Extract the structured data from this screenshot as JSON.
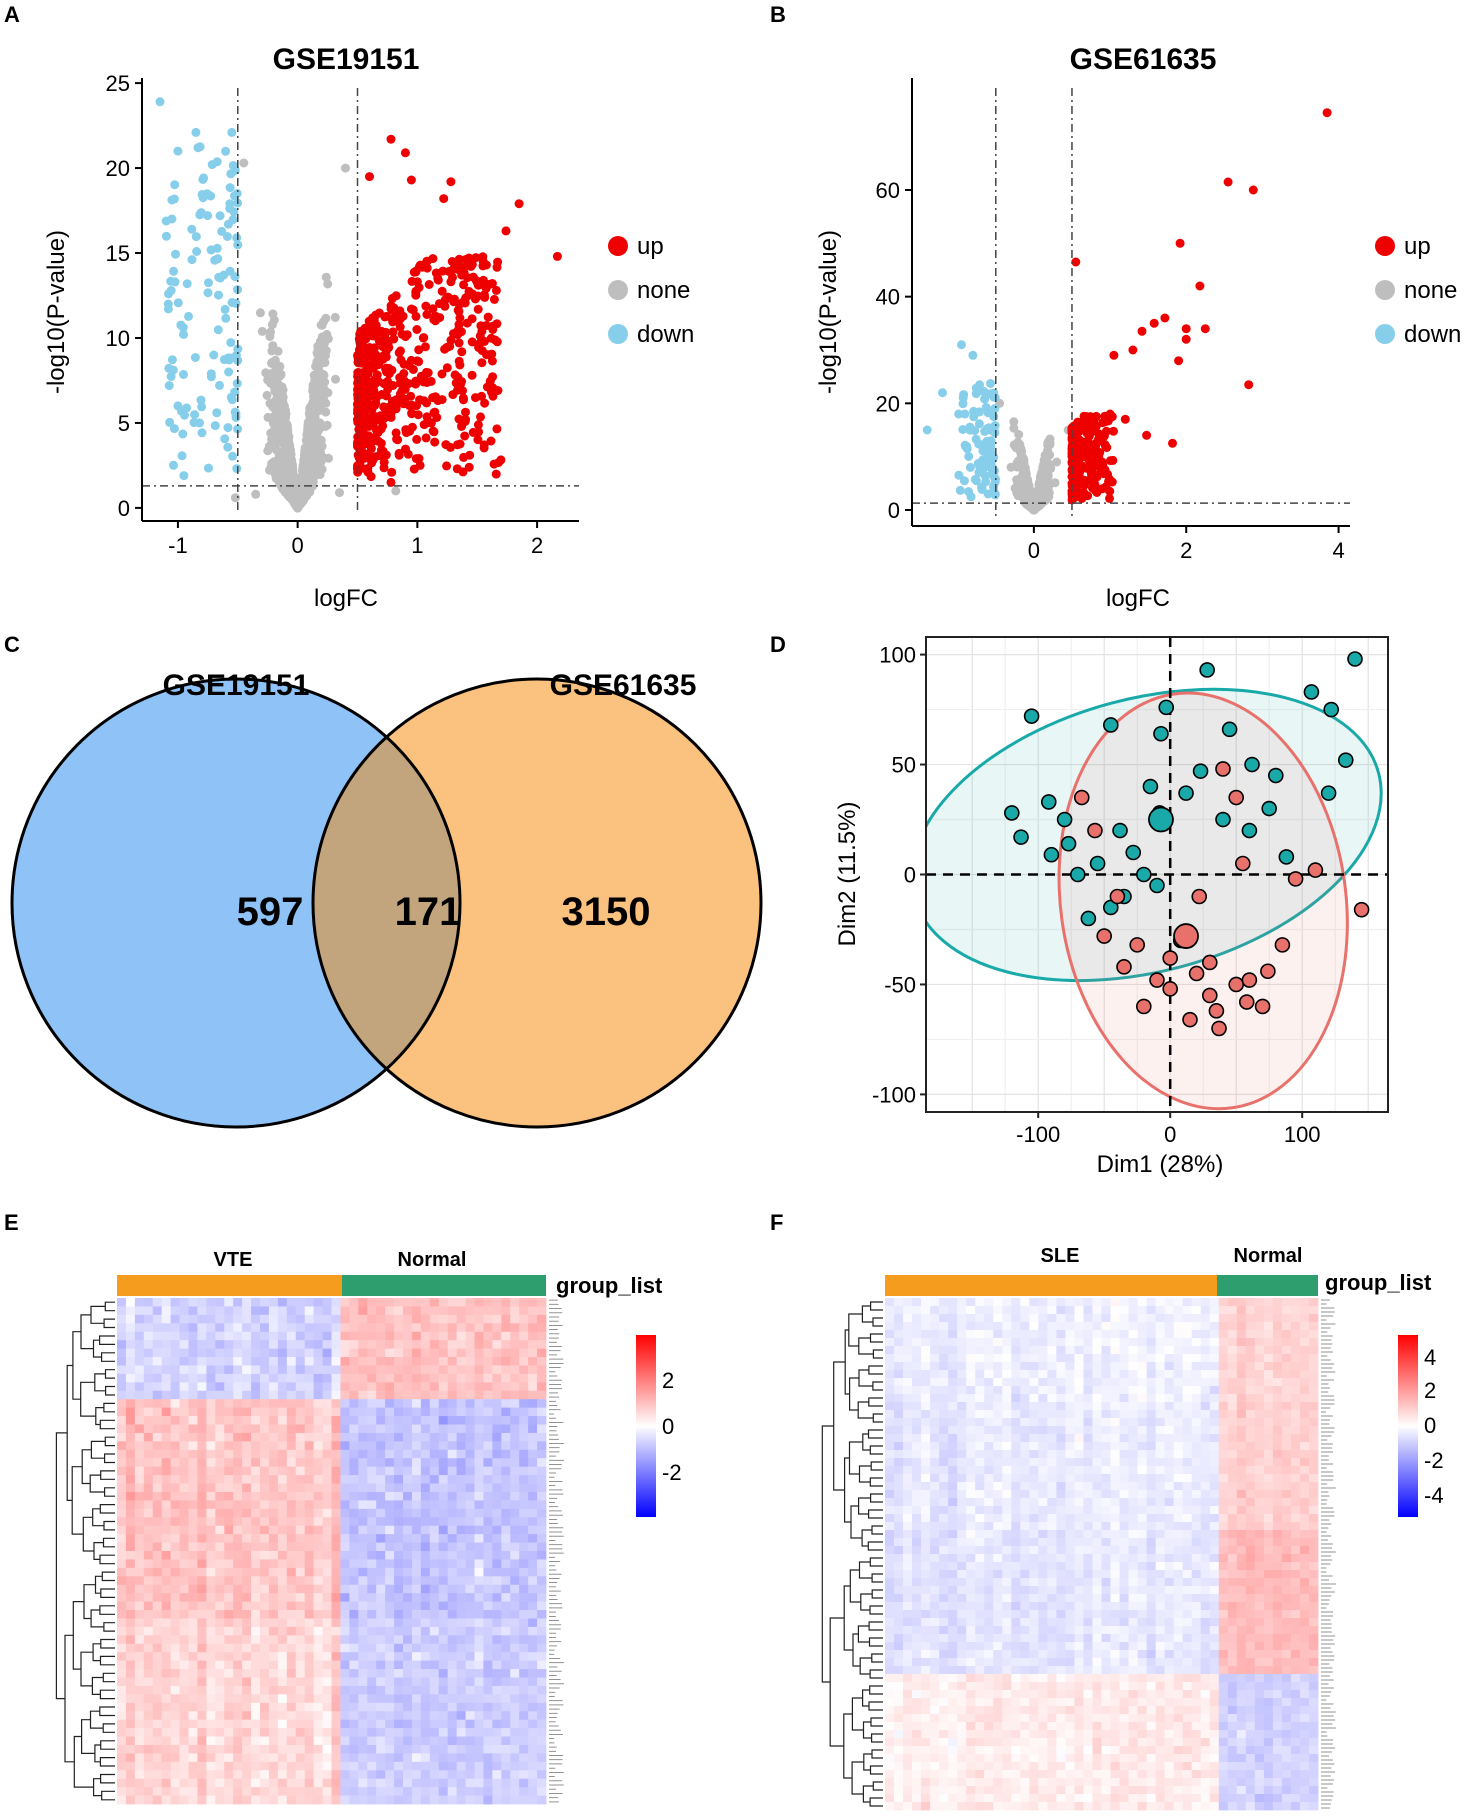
{
  "panels": {
    "A": "A",
    "B": "B",
    "C": "C",
    "D": "D",
    "E": "E",
    "F": "F"
  },
  "colors": {
    "up": "#ee0000",
    "none": "#bebebe",
    "down": "#87ceeb",
    "venn_left": "#8fc3f7",
    "venn_right": "#fac17f",
    "venn_overlap": "#c3a57d",
    "pca_group1": "#1aa9a9",
    "pca_group2": "#e8716b",
    "hm_high": "#ff0000",
    "hm_low": "#0000ff",
    "hm_bar_disease": "#f59c1e",
    "hm_bar_normal": "#2e9e6f"
  },
  "chart_data": [
    {
      "id": "A",
      "type": "scatter",
      "title": "GSE19151",
      "xlabel": "logFC",
      "ylabel": "-log10(P-value)",
      "xlim": [
        -1.3,
        2.35
      ],
      "ylim": [
        -0.3,
        25.3
      ],
      "xticks": [
        -1,
        0,
        1,
        2
      ],
      "yticks": [
        0,
        5,
        10,
        15,
        20,
        25
      ],
      "vlines": [
        -0.5,
        0.5
      ],
      "hline": 1.3,
      "legend": [
        "up",
        "none",
        "down"
      ],
      "legend_position": "right",
      "series": [
        {
          "name": "up",
          "points": [
            [
              2.17,
              14.8
            ],
            [
              1.85,
              17.9
            ],
            [
              1.74,
              16.3
            ],
            [
              1.66,
              12.8
            ],
            [
              1.63,
              10.5
            ],
            [
              1.55,
              14.5
            ],
            [
              1.28,
              19.2
            ],
            [
              1.22,
              18.2
            ],
            [
              0.9,
              20.9
            ],
            [
              0.78,
              21.7
            ],
            [
              0.95,
              19.3
            ],
            [
              0.6,
              19.5
            ],
            [
              1.35,
              7.4
            ],
            [
              1.08,
              5.0
            ],
            [
              0.78,
              1.5
            ]
          ]
        },
        {
          "name": "down",
          "points": [
            [
              -1.15,
              23.9
            ],
            [
              -0.85,
              22.1
            ],
            [
              -1.0,
              21.0
            ],
            [
              -1.08,
              12.0
            ],
            [
              -1.0,
              6.0
            ],
            [
              -0.95,
              1.9
            ],
            [
              -0.82,
              5.0
            ],
            [
              -0.7,
              9.0
            ],
            [
              -1.05,
              17.0
            ],
            [
              -0.55,
              22.1
            ]
          ]
        },
        {
          "name": "none",
          "points": [
            [
              0.0,
              0.2
            ],
            [
              -0.35,
              0.8
            ],
            [
              0.35,
              0.9
            ],
            [
              0.82,
              1.0
            ],
            [
              -0.52,
              0.6
            ],
            [
              0.4,
              20.0
            ],
            [
              -0.45,
              20.3
            ]
          ]
        }
      ]
    },
    {
      "id": "B",
      "type": "scatter",
      "title": "GSE61635",
      "xlabel": "logFC",
      "ylabel": "-log10(P-value)",
      "xlim": [
        -1.6,
        4.15
      ],
      "ylim": [
        -1.5,
        81
      ],
      "xticks": [
        0,
        2,
        4
      ],
      "yticks": [
        0,
        20,
        40,
        60
      ],
      "vlines": [
        -0.5,
        0.5
      ],
      "hline": 1.3,
      "legend": [
        "up",
        "none",
        "down"
      ],
      "legend_position": "right",
      "series": [
        {
          "name": "up",
          "points": [
            [
              3.85,
              74.5
            ],
            [
              2.55,
              61.5
            ],
            [
              2.88,
              60.0
            ],
            [
              1.92,
              50.0
            ],
            [
              0.55,
              46.5
            ],
            [
              2.18,
              42.0
            ],
            [
              1.58,
              35.0
            ],
            [
              1.72,
              36.0
            ],
            [
              1.42,
              33.5
            ],
            [
              2.0,
              34.0
            ],
            [
              2.25,
              34.0
            ],
            [
              2.0,
              32.0
            ],
            [
              1.3,
              30.0
            ],
            [
              1.05,
              29.0
            ],
            [
              2.82,
              23.5
            ],
            [
              1.9,
              28.0
            ],
            [
              1.48,
              14.0
            ],
            [
              1.82,
              12.5
            ],
            [
              1.0,
              18.0
            ],
            [
              1.2,
              17.0
            ],
            [
              0.85,
              10.0
            ]
          ]
        },
        {
          "name": "down",
          "points": [
            [
              -1.4,
              15.0
            ],
            [
              -1.2,
              22.0
            ],
            [
              -0.95,
              31.0
            ],
            [
              -0.8,
              29.0
            ],
            [
              -0.6,
              3.0
            ]
          ]
        },
        {
          "name": "none",
          "points": [
            [
              0.0,
              1.0
            ],
            [
              -0.3,
              8.0
            ],
            [
              0.3,
              9.0
            ],
            [
              -0.45,
              20.0
            ],
            [
              0.45,
              15.0
            ]
          ]
        }
      ]
    },
    {
      "id": "C",
      "type": "venn",
      "sets": [
        {
          "name": "GSE19151"
        },
        {
          "name": "GSE61635"
        }
      ],
      "values": {
        "left_only": "597",
        "overlap": "171",
        "right_only": "3150"
      }
    },
    {
      "id": "D",
      "type": "scatter",
      "xlabel": "Dim1 (28%)",
      "ylabel": "Dim2 (11.5%)",
      "xlim": [
        -185,
        165
      ],
      "ylim": [
        -108,
        108
      ],
      "xticks": [
        -100,
        0,
        100
      ],
      "yticks": [
        -100,
        -50,
        0,
        50,
        100
      ],
      "grid": true,
      "series": [
        {
          "name": "group1",
          "centroid": [
            -7,
            25
          ],
          "ellipse": {
            "cx": -18,
            "cy": 18,
            "rx": 182,
            "ry": 62,
            "angle": 15
          },
          "points": [
            [
              -105,
              72
            ],
            [
              -120,
              28
            ],
            [
              -113,
              17
            ],
            [
              -92,
              33
            ],
            [
              -80,
              25
            ],
            [
              -77,
              14
            ],
            [
              -90,
              9
            ],
            [
              -70,
              0
            ],
            [
              -55,
              5
            ],
            [
              -38,
              20
            ],
            [
              -28,
              10
            ],
            [
              -15,
              40
            ],
            [
              -8,
              28
            ],
            [
              -20,
              0
            ],
            [
              -45,
              68
            ],
            [
              -3,
              76
            ],
            [
              -7,
              64
            ],
            [
              28,
              93
            ],
            [
              45,
              66
            ],
            [
              62,
              50
            ],
            [
              80,
              45
            ],
            [
              107,
              83
            ],
            [
              140,
              98
            ],
            [
              122,
              75
            ],
            [
              133,
              52
            ],
            [
              120,
              37
            ],
            [
              88,
              8
            ],
            [
              75,
              30
            ],
            [
              60,
              20
            ],
            [
              40,
              25
            ],
            [
              12,
              37
            ],
            [
              23,
              47
            ],
            [
              -45,
              -15
            ],
            [
              -62,
              -20
            ],
            [
              -35,
              -10
            ],
            [
              -10,
              -5
            ]
          ]
        },
        {
          "name": "group2",
          "centroid": [
            12,
            -28
          ],
          "ellipse": {
            "cx": 25,
            "cy": -12,
            "rx": 108,
            "ry": 95,
            "angle": 8
          },
          "points": [
            [
              -67,
              35
            ],
            [
              -57,
              20
            ],
            [
              -40,
              -10
            ],
            [
              -50,
              -28
            ],
            [
              -25,
              -32
            ],
            [
              -10,
              -48
            ],
            [
              0,
              -38
            ],
            [
              8,
              -30
            ],
            [
              20,
              -45
            ],
            [
              30,
              -55
            ],
            [
              35,
              -62
            ],
            [
              50,
              -50
            ],
            [
              58,
              -58
            ],
            [
              70,
              -60
            ],
            [
              85,
              -32
            ],
            [
              95,
              -2
            ],
            [
              110,
              2
            ],
            [
              145,
              -16
            ],
            [
              40,
              48
            ],
            [
              50,
              35
            ],
            [
              55,
              5
            ],
            [
              22,
              -10
            ],
            [
              0,
              -52
            ],
            [
              15,
              -66
            ],
            [
              37,
              -70
            ],
            [
              74,
              -44
            ],
            [
              60,
              -48
            ],
            [
              30,
              -40
            ],
            [
              -20,
              -60
            ],
            [
              -35,
              -42
            ]
          ]
        }
      ]
    },
    {
      "id": "E",
      "type": "heatmap",
      "groups": [
        {
          "name": "VTE",
          "fraction": 0.52
        },
        {
          "name": "Normal",
          "fraction": 0.48
        }
      ],
      "legend_title": "group_list",
      "colorbar_ticks": [
        2,
        0,
        -2
      ],
      "colorbar_range": [
        -3,
        3
      ],
      "rows": 60,
      "cols": 48
    },
    {
      "id": "F",
      "type": "heatmap",
      "groups": [
        {
          "name": "SLE",
          "fraction": 0.77
        },
        {
          "name": "Normal",
          "fraction": 0.23
        }
      ],
      "legend_title": "group_list",
      "colorbar_ticks": [
        4,
        2,
        0,
        -2,
        -4
      ],
      "colorbar_range": [
        -5,
        5
      ],
      "rows": 64,
      "cols": 48
    }
  ]
}
